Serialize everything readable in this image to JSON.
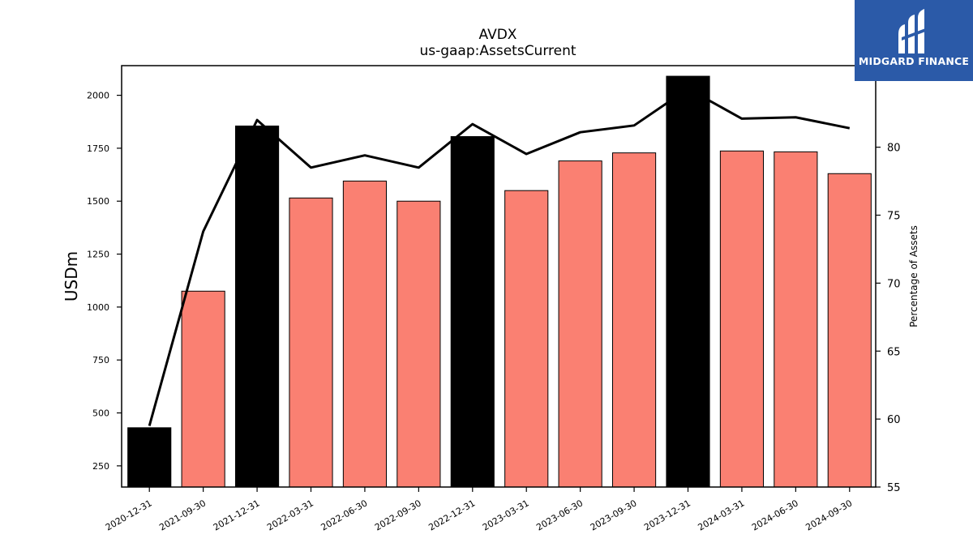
{
  "brand": {
    "name": "MIDGARD FINANCE",
    "bg_color": "#2b5aa8"
  },
  "chart_data": {
    "type": "bar",
    "title": "AVDX",
    "subtitle": "us-gaap:AssetsCurrent",
    "xlabel": "",
    "ylabel": "USDm",
    "y2label": "Percentage of Assets",
    "ylim": [
      150,
      2140
    ],
    "y2lim": [
      55,
      86
    ],
    "yticks": [
      250,
      500,
      750,
      1000,
      1250,
      1500,
      1750,
      2000
    ],
    "y2ticks": [
      55,
      60,
      65,
      70,
      75,
      80
    ],
    "categories": [
      "2020-12-31",
      "2021-09-30",
      "2021-12-31",
      "2022-03-31",
      "2022-06-30",
      "2022-09-30",
      "2022-12-31",
      "2023-03-31",
      "2023-06-30",
      "2023-09-30",
      "2023-12-31",
      "2024-03-31",
      "2024-06-30",
      "2024-09-30"
    ],
    "series": [
      {
        "type": "bar",
        "axis": "left",
        "values": [
          430,
          1075,
          1855,
          1515,
          1595,
          1500,
          1805,
          1550,
          1690,
          1728,
          2090,
          1737,
          1733,
          1630
        ],
        "colors": [
          "#000000",
          "#fa8072",
          "#000000",
          "#fa8072",
          "#fa8072",
          "#fa8072",
          "#000000",
          "#fa8072",
          "#fa8072",
          "#fa8072",
          "#000000",
          "#fa8072",
          "#fa8072",
          "#fa8072"
        ]
      },
      {
        "type": "line",
        "axis": "right",
        "color": "#000000",
        "values": [
          59.5,
          73.8,
          82.0,
          78.5,
          79.4,
          78.5,
          81.7,
          79.5,
          81.1,
          81.6,
          84.3,
          82.1,
          82.2,
          81.4
        ]
      }
    ],
    "grid": false,
    "legend": "none"
  }
}
